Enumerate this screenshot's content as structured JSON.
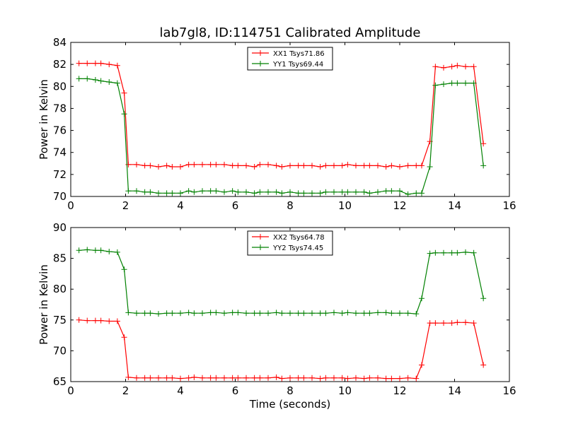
{
  "figure_title": "lab7gl8, ID:114751 Calibrated Amplitude",
  "chart_data": [
    {
      "type": "line",
      "ylabel": "Power in Kelvin",
      "xlabel": "",
      "xlim": [
        0,
        16
      ],
      "ylim": [
        70,
        84
      ],
      "xticks": [
        0,
        2,
        4,
        6,
        8,
        10,
        12,
        14,
        16
      ],
      "yticks": [
        70,
        72,
        74,
        76,
        78,
        80,
        82,
        84
      ],
      "legend": "top-center",
      "grid": false,
      "x": [
        0.3,
        0.6,
        0.9,
        1.1,
        1.4,
        1.7,
        1.9,
        2.1,
        2.4,
        2.7,
        2.9,
        3.2,
        3.5,
        3.7,
        4.0,
        4.3,
        4.5,
        4.8,
        5.1,
        5.3,
        5.6,
        5.9,
        6.1,
        6.4,
        6.7,
        6.9,
        7.2,
        7.5,
        7.7,
        8.0,
        8.3,
        8.5,
        8.8,
        9.1,
        9.3,
        9.6,
        9.9,
        10.1,
        10.4,
        10.7,
        10.9,
        11.2,
        11.5,
        11.7,
        12.0,
        12.3,
        12.5,
        12.8,
        13.1,
        13.3,
        13.6,
        13.9,
        14.1,
        14.4,
        14.7,
        14.9
      ],
      "series": [
        {
          "name": "XX1 Tsys71.86",
          "color": "#ff0000",
          "values": [
            82.1,
            82.1,
            82.1,
            82.1,
            82.0,
            81.9,
            79.4,
            72.9,
            72.9,
            72.8,
            72.8,
            72.7,
            72.8,
            72.7,
            72.7,
            72.9,
            72.9,
            72.9,
            72.9,
            72.9,
            72.9,
            72.8,
            72.8,
            72.8,
            72.7,
            72.9,
            72.9,
            72.8,
            72.7,
            72.8,
            72.8,
            72.8,
            72.8,
            72.7,
            72.8,
            72.8,
            72.8,
            72.9,
            72.8,
            72.8,
            72.8,
            72.8,
            72.7,
            72.8,
            72.7,
            72.8,
            72.8,
            72.8,
            75.0,
            81.8,
            81.7,
            81.8,
            81.9,
            81.8,
            81.8,
            74.8
          ],
          "x_override": [
            0.3,
            0.6,
            0.9,
            1.1,
            1.4,
            1.7,
            1.95,
            2.1,
            2.4,
            2.7,
            2.9,
            3.2,
            3.5,
            3.7,
            4.0,
            4.3,
            4.5,
            4.8,
            5.1,
            5.3,
            5.6,
            5.9,
            6.1,
            6.4,
            6.7,
            6.9,
            7.2,
            7.5,
            7.7,
            8.0,
            8.3,
            8.5,
            8.8,
            9.1,
            9.3,
            9.6,
            9.9,
            10.1,
            10.4,
            10.7,
            10.9,
            11.2,
            11.5,
            11.7,
            12.0,
            12.3,
            12.6,
            12.8,
            13.1,
            13.3,
            13.6,
            13.9,
            14.1,
            14.4,
            14.7,
            15.05
          ]
        },
        {
          "name": "YY1 Tsys69.44",
          "color": "#008000",
          "values": [
            80.7,
            80.7,
            80.6,
            80.5,
            80.4,
            80.3,
            77.5,
            70.5,
            70.5,
            70.4,
            70.4,
            70.3,
            70.3,
            70.3,
            70.3,
            70.5,
            70.4,
            70.5,
            70.5,
            70.5,
            70.4,
            70.5,
            70.4,
            70.4,
            70.3,
            70.4,
            70.4,
            70.4,
            70.3,
            70.4,
            70.3,
            70.3,
            70.3,
            70.3,
            70.4,
            70.4,
            70.4,
            70.4,
            70.4,
            70.4,
            70.3,
            70.4,
            70.5,
            70.5,
            70.5,
            70.2,
            70.3,
            70.3,
            72.7,
            80.1,
            80.2,
            80.3,
            80.3,
            80.3,
            80.3,
            72.8
          ],
          "x_override": [
            0.3,
            0.6,
            0.9,
            1.1,
            1.4,
            1.7,
            1.95,
            2.1,
            2.4,
            2.7,
            2.9,
            3.2,
            3.5,
            3.7,
            4.0,
            4.3,
            4.5,
            4.8,
            5.1,
            5.3,
            5.6,
            5.9,
            6.1,
            6.4,
            6.7,
            6.9,
            7.2,
            7.5,
            7.7,
            8.0,
            8.3,
            8.5,
            8.8,
            9.1,
            9.3,
            9.6,
            9.9,
            10.1,
            10.4,
            10.7,
            10.9,
            11.2,
            11.5,
            11.7,
            12.0,
            12.3,
            12.6,
            12.8,
            13.1,
            13.3,
            13.6,
            13.9,
            14.1,
            14.4,
            14.7,
            15.05
          ]
        }
      ]
    },
    {
      "type": "line",
      "ylabel": "Power in Kelvin",
      "xlabel": "Time (seconds)",
      "xlim": [
        0,
        16
      ],
      "ylim": [
        65,
        90
      ],
      "xticks": [
        0,
        2,
        4,
        6,
        8,
        10,
        12,
        14,
        16
      ],
      "yticks": [
        65,
        70,
        75,
        80,
        85,
        90
      ],
      "legend": "top-center",
      "grid": false,
      "x": [
        0.3,
        0.6,
        0.9,
        1.1,
        1.4,
        1.7,
        1.95,
        2.1,
        2.4,
        2.7,
        2.9,
        3.2,
        3.5,
        3.7,
        4.0,
        4.3,
        4.5,
        4.8,
        5.1,
        5.3,
        5.6,
        5.9,
        6.1,
        6.4,
        6.7,
        6.9,
        7.2,
        7.5,
        7.7,
        8.0,
        8.3,
        8.5,
        8.8,
        9.1,
        9.3,
        9.6,
        9.9,
        10.1,
        10.4,
        10.7,
        10.9,
        11.2,
        11.5,
        11.7,
        12.0,
        12.3,
        12.6,
        12.8,
        13.1,
        13.3,
        13.6,
        13.9,
        14.1,
        14.4,
        14.7,
        15.05
      ],
      "series": [
        {
          "name": "XX2 Tsys64.78",
          "color": "#ff0000",
          "values": [
            75.0,
            74.9,
            74.9,
            74.9,
            74.8,
            74.8,
            72.2,
            65.7,
            65.6,
            65.6,
            65.6,
            65.6,
            65.6,
            65.6,
            65.5,
            65.6,
            65.7,
            65.6,
            65.6,
            65.6,
            65.6,
            65.6,
            65.6,
            65.6,
            65.6,
            65.6,
            65.6,
            65.7,
            65.5,
            65.6,
            65.6,
            65.6,
            65.6,
            65.5,
            65.6,
            65.6,
            65.6,
            65.5,
            65.6,
            65.5,
            65.6,
            65.6,
            65.5,
            65.5,
            65.5,
            65.6,
            65.5,
            67.7,
            74.5,
            74.5,
            74.5,
            74.5,
            74.6,
            74.6,
            74.5,
            67.7
          ]
        },
        {
          "name": "YY2 Tsys74.45",
          "color": "#008000",
          "values": [
            86.3,
            86.4,
            86.3,
            86.3,
            86.1,
            86.0,
            83.2,
            76.2,
            76.1,
            76.1,
            76.1,
            76.0,
            76.1,
            76.1,
            76.1,
            76.2,
            76.1,
            76.1,
            76.2,
            76.2,
            76.1,
            76.2,
            76.2,
            76.1,
            76.1,
            76.1,
            76.1,
            76.2,
            76.1,
            76.1,
            76.1,
            76.1,
            76.1,
            76.1,
            76.1,
            76.2,
            76.1,
            76.2,
            76.1,
            76.1,
            76.1,
            76.2,
            76.2,
            76.1,
            76.1,
            76.1,
            76.0,
            78.5,
            85.8,
            85.9,
            85.9,
            85.9,
            85.9,
            86.0,
            85.9,
            78.5
          ]
        }
      ]
    }
  ]
}
